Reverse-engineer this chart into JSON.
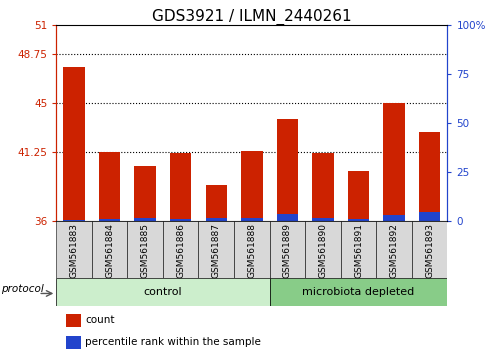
{
  "title": "GDS3921 / ILMN_2440261",
  "samples": [
    "GSM561883",
    "GSM561884",
    "GSM561885",
    "GSM561886",
    "GSM561887",
    "GSM561888",
    "GSM561889",
    "GSM561890",
    "GSM561891",
    "GSM561892",
    "GSM561893"
  ],
  "count_values": [
    47.8,
    41.3,
    40.2,
    41.2,
    38.8,
    41.4,
    43.8,
    41.2,
    39.8,
    45.0,
    42.8
  ],
  "percentile_values": [
    0.5,
    1.2,
    1.5,
    1.2,
    1.4,
    1.8,
    3.5,
    1.5,
    1.2,
    3.2,
    4.5
  ],
  "ymin": 36,
  "ymax": 51,
  "yticks_left": [
    36,
    41.25,
    45,
    48.75,
    51
  ],
  "yticks_right": [
    0,
    25,
    50,
    75,
    100
  ],
  "ytick_labels_left": [
    "36",
    "41.25",
    "45",
    "48.75",
    "51"
  ],
  "ytick_labels_right": [
    "0",
    "25",
    "50",
    "75",
    "100%"
  ],
  "grid_lines": [
    48.75,
    45,
    41.25
  ],
  "n_control": 6,
  "n_microbiota": 5,
  "bar_width": 0.6,
  "bar_color_red": "#cc2200",
  "bar_color_blue": "#2244cc",
  "bg_color": "#ffffff",
  "bar_bg_color": "#d8d8d8",
  "control_group_color": "#cceecc",
  "microbiota_group_color": "#88cc88",
  "protocol_label": "protocol",
  "control_label": "control",
  "microbiota_label": "microbiota depleted",
  "legend_count": "count",
  "legend_percentile": "percentile rank within the sample",
  "left_axis_color": "#cc2200",
  "right_axis_color": "#2244cc",
  "title_fontsize": 11,
  "tick_fontsize": 7.5,
  "sample_fontsize": 6.5
}
